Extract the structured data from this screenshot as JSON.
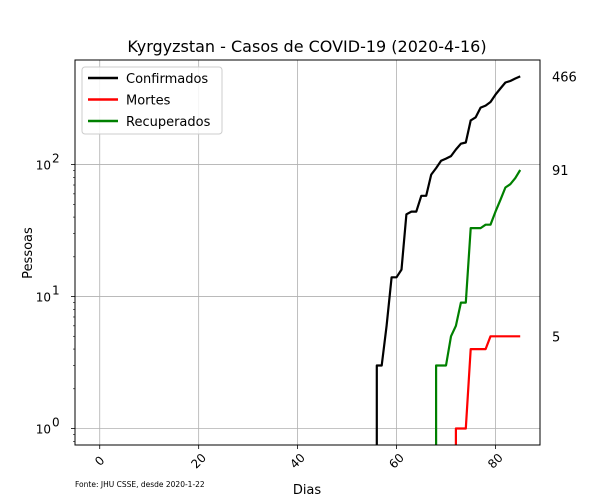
{
  "chart_data": {
    "type": "line",
    "title": "Kyrgyzstan - Casos de COVID-19 (2020-4-16)",
    "xlabel": "Dias",
    "ylabel": "Pessoas",
    "source": "Fonte: JHU CSSE, desde 2020-1-22",
    "xlim": [
      -5,
      89
    ],
    "ylim": [
      0.75,
      620
    ],
    "yscale": "log",
    "grid": true,
    "legend_position": "top-left",
    "x_ticks": [
      {
        "value": 0,
        "label": "0"
      },
      {
        "value": 20,
        "label": "20"
      },
      {
        "value": 40,
        "label": "40"
      },
      {
        "value": 60,
        "label": "60"
      },
      {
        "value": 80,
        "label": "80"
      }
    ],
    "y_ticks": [
      {
        "value": 1,
        "base": "10",
        "exp": "0"
      },
      {
        "value": 10,
        "base": "10",
        "exp": "1"
      },
      {
        "value": 100,
        "base": "10",
        "exp": "2"
      }
    ],
    "end_labels": [
      {
        "value": 466,
        "label": "466"
      },
      {
        "value": 91,
        "label": "91"
      },
      {
        "value": 5,
        "label": "5"
      }
    ],
    "series": [
      {
        "name": "Confirmados",
        "color": "#000000",
        "x": [
          56,
          57,
          58,
          59,
          60,
          61,
          62,
          63,
          64,
          65,
          66,
          67,
          68,
          69,
          70,
          71,
          72,
          73,
          74,
          75,
          76,
          77,
          78,
          79,
          80,
          81,
          82,
          83,
          84,
          85
        ],
        "y": [
          3,
          3,
          6,
          14,
          14,
          16,
          42,
          44,
          44,
          58,
          58,
          84,
          94,
          107,
          111,
          116,
          130,
          144,
          147,
          216,
          228,
          270,
          280,
          298,
          339,
          377,
          419,
          430,
          449,
          466
        ]
      },
      {
        "name": "Mortes",
        "color": "#ff0000",
        "x": [
          72,
          73,
          74,
          75,
          76,
          77,
          78,
          79,
          80,
          81,
          82,
          83,
          84,
          85
        ],
        "y": [
          1,
          1,
          1,
          4,
          4,
          4,
          4,
          5,
          5,
          5,
          5,
          5,
          5,
          5
        ]
      },
      {
        "name": "Recuperados",
        "color": "#008000",
        "x": [
          68,
          69,
          70,
          71,
          72,
          73,
          74,
          75,
          76,
          77,
          78,
          79,
          80,
          81,
          82,
          83,
          84,
          85
        ],
        "y": [
          3,
          3,
          3,
          5,
          6,
          9,
          9,
          33,
          33,
          33,
          35,
          35,
          44,
          54,
          67,
          71,
          79,
          91
        ]
      }
    ]
  }
}
